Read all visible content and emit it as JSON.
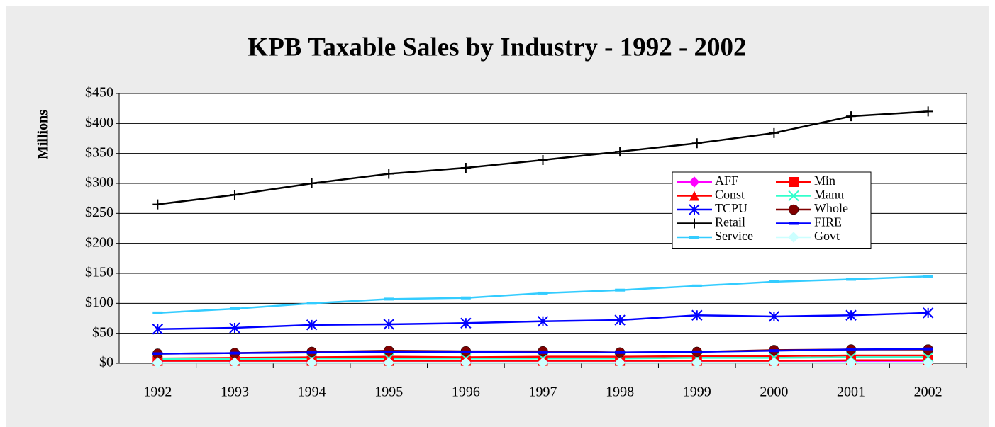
{
  "chart_data": {
    "type": "line",
    "title": "KPB Taxable Sales by Industry - 1992 - 2002",
    "y_label": "Millions",
    "categories": [
      "1992",
      "1993",
      "1994",
      "1995",
      "1996",
      "1997",
      "1998",
      "1999",
      "2000",
      "2001",
      "2002"
    ],
    "ylim": [
      0,
      450
    ],
    "yticks": [
      {
        "value": 0,
        "label": "$0"
      },
      {
        "value": 50,
        "label": "$50"
      },
      {
        "value": 100,
        "label": "$100"
      },
      {
        "value": 150,
        "label": "$150"
      },
      {
        "value": 200,
        "label": "$200"
      },
      {
        "value": 250,
        "label": "$250"
      },
      {
        "value": 300,
        "label": "$300"
      },
      {
        "value": 350,
        "label": "$350"
      },
      {
        "value": 400,
        "label": "$400"
      },
      {
        "value": 450,
        "label": "$450"
      }
    ],
    "grid": true,
    "series": [
      {
        "name": "AFF",
        "color": "#ff00ff",
        "marker": "diamond",
        "values": [
          2,
          2,
          2,
          2,
          2,
          3,
          3,
          3,
          3,
          3,
          3
        ]
      },
      {
        "name": "Min",
        "color": "#ff0000",
        "marker": "square",
        "values": [
          4,
          4,
          4,
          4,
          4,
          4,
          4,
          4,
          4,
          5,
          5
        ]
      },
      {
        "name": "Const",
        "color": "#ff0000",
        "marker": "triangle",
        "values": [
          8,
          9,
          10,
          11,
          10,
          11,
          11,
          12,
          12,
          13,
          13
        ]
      },
      {
        "name": "Manu",
        "color": "#33ffcc",
        "marker": "x",
        "values": [
          7,
          7,
          8,
          8,
          8,
          8,
          8,
          9,
          9,
          10,
          10
        ]
      },
      {
        "name": "TCPU",
        "color": "#0000ff",
        "marker": "star",
        "values": [
          57,
          59,
          64,
          65,
          67,
          70,
          72,
          80,
          78,
          80,
          84
        ]
      },
      {
        "name": "Whole",
        "color": "#800000",
        "marker": "circle",
        "values": [
          16,
          17,
          19,
          21,
          20,
          20,
          18,
          19,
          22,
          23,
          23
        ]
      },
      {
        "name": "Retail",
        "color": "#000000",
        "marker": "plus",
        "values": [
          265,
          281,
          300,
          316,
          326,
          339,
          353,
          367,
          384,
          412,
          420
        ]
      },
      {
        "name": "FIRE",
        "color": "#0000ff",
        "marker": "dash",
        "values": [
          16,
          17,
          18,
          19,
          19,
          18,
          18,
          19,
          21,
          23,
          24
        ]
      },
      {
        "name": "Service",
        "color": "#33ccff",
        "marker": "dash",
        "values": [
          84,
          91,
          100,
          107,
          109,
          117,
          122,
          129,
          136,
          140,
          145
        ]
      },
      {
        "name": "Govt",
        "color": "#ccffff",
        "marker": "diamond",
        "values": [
          1,
          1,
          1,
          1,
          1,
          1,
          1,
          1,
          1,
          1,
          1
        ]
      }
    ]
  }
}
